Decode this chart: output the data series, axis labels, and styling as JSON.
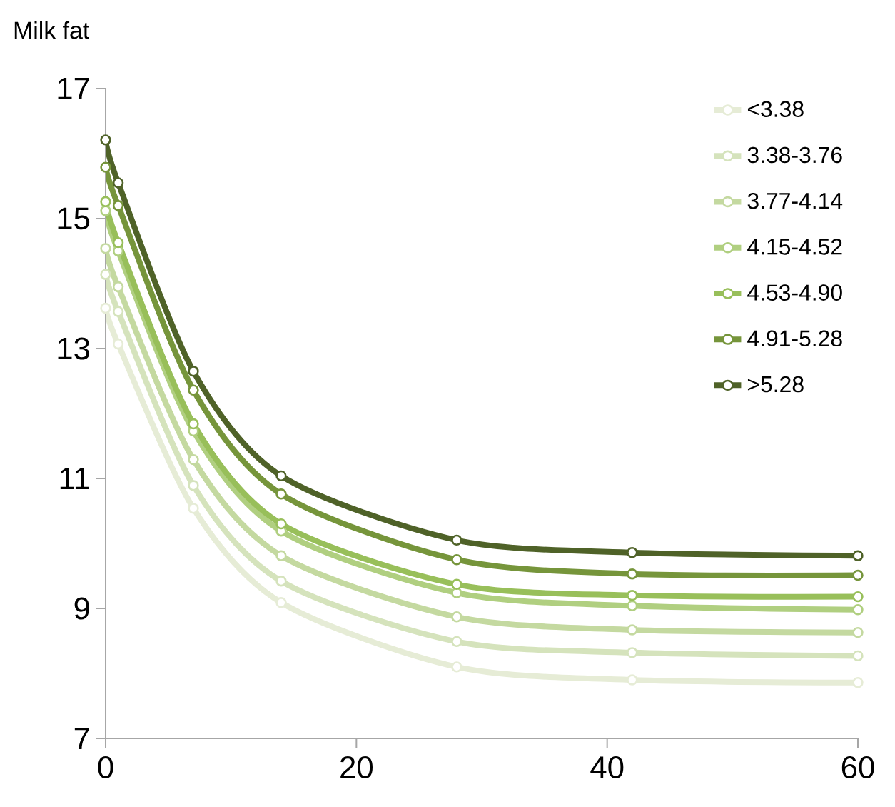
{
  "chart_data": {
    "type": "line",
    "ylabel": "Milk fat",
    "x": [
      0,
      1,
      7,
      14,
      28,
      42,
      60
    ],
    "xlim": [
      0,
      60
    ],
    "ylim": [
      7,
      17
    ],
    "xticks": [
      0,
      20,
      40,
      60
    ],
    "yticks": [
      7,
      9,
      11,
      13,
      15,
      17
    ],
    "grid": false,
    "legend": "top right",
    "marker": "circle",
    "line_style": "solid",
    "series": [
      {
        "name": "<3.38",
        "color": "#e6ecd6",
        "values": [
          13.62,
          13.07,
          10.54,
          9.09,
          8.1,
          7.9,
          7.86
        ]
      },
      {
        "name": "3.38-3.76",
        "color": "#d5e3bc",
        "values": [
          14.14,
          13.57,
          10.89,
          9.42,
          8.49,
          8.32,
          8.27
        ]
      },
      {
        "name": "3.77-4.14",
        "color": "#c4d9a0",
        "values": [
          14.54,
          13.95,
          11.29,
          9.81,
          8.87,
          8.67,
          8.63
        ]
      },
      {
        "name": "4.15-4.52",
        "color": "#b0cf80",
        "values": [
          15.12,
          14.5,
          11.73,
          10.19,
          9.24,
          9.04,
          8.98
        ]
      },
      {
        "name": "4.53-4.90",
        "color": "#98bf5a",
        "values": [
          15.26,
          14.63,
          11.84,
          10.3,
          9.37,
          9.2,
          9.18
        ]
      },
      {
        "name": "4.91-5.28",
        "color": "#76953b",
        "values": [
          15.79,
          15.2,
          12.36,
          10.76,
          9.75,
          9.53,
          9.51
        ]
      },
      {
        "name": ">5.28",
        "color": "#4f6228",
        "values": [
          16.21,
          15.55,
          12.65,
          11.04,
          10.05,
          9.86,
          9.81
        ]
      }
    ]
  }
}
